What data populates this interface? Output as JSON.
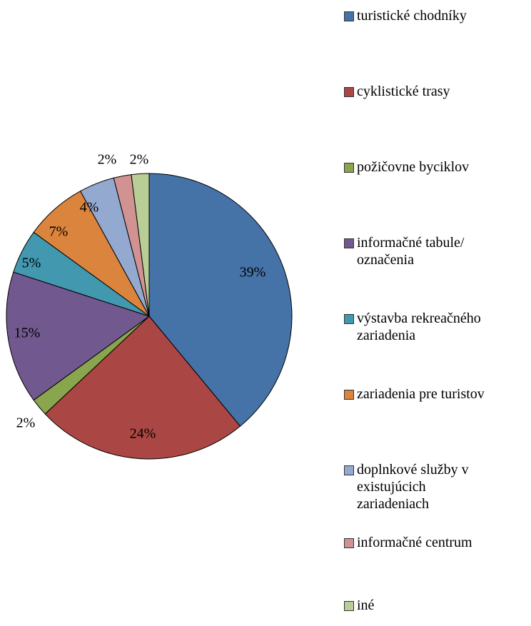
{
  "chart_data": {
    "type": "pie",
    "categories": [
      "turistické chodníky",
      "cyklistické trasy",
      "požičovne byciklov",
      "informačné tabule/\noznačenia",
      "výstavba rekreačného\nzariadenia",
      "zariadenia pre turistov",
      "doplnkové služby v\nexistujúcich\nzariadeniach",
      "informačné centrum",
      "iné"
    ],
    "values": [
      39,
      24,
      2,
      15,
      5,
      7,
      4,
      2,
      2
    ],
    "value_labels": [
      "39%",
      "24%",
      "2%",
      "15%",
      "5%",
      "7%",
      "4%",
      "2%",
      "2%"
    ],
    "colors": [
      "#4572a7",
      "#aa4643",
      "#89a54e",
      "#71588f",
      "#4198af",
      "#db843d",
      "#93a9cf",
      "#d19392",
      "#b9cd96"
    ]
  }
}
